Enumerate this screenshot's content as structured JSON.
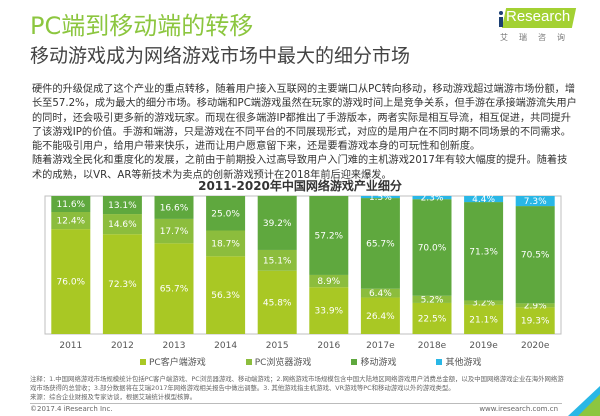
{
  "header": {
    "title": "PC端到移动端的转移",
    "subtitle": "移动游戏成为网络游戏市场中最大的细分市场",
    "logo_text": "Research",
    "logo_cn": "艾瑞咨询"
  },
  "body": {
    "paragraphs": [
      "硬件的升级促成了这个产业的重点转移，随着用户接入互联网的主要端口从PC转向移动，移动游戏超过端游市场份额，增长至57.2%，成为最大的细分市场。移动端和PC端游戏虽然在玩家的游戏时间上是竞争关系，但手游在承接端游流失用户的同时，还会吸引更多新的游戏玩家。而现在很多端游IP都推出了手游版本，两者实际是相互导流，相互促进，共同提升了该游戏IP的价值。手游和端游，只是游戏在不同平台的不同展现形式，对应的是用户在不同时期不同场景的不同需求。能不能吸引用户，给用户带来快乐，进而让用户愿意留下来，还是要看游戏本身的可玩性和创新度。",
      "随着游戏全民化和重度化的发展，之前由于前期投入过高导致用户入门难的主机游戏2017年有较大幅度的提升。随着技术的成熟，以VR、AR等新技术为卖点的创新游戏预计在2018年前后迎来爆发。"
    ]
  },
  "chart_data": {
    "type": "bar",
    "stacked": true,
    "percent": true,
    "title": "2011-2020年中国网络游戏产业细分",
    "xlabel": "",
    "ylabel": "",
    "ylim": [
      0,
      100
    ],
    "grid": false,
    "legend_position": "bottom",
    "categories": [
      "2011",
      "2012",
      "2013",
      "2014",
      "2015",
      "2016",
      "2017e",
      "2018e",
      "2019e",
      "2020e"
    ],
    "series": [
      {
        "name": "PC客户端游戏",
        "color": "#a9c824",
        "values": [
          76.0,
          72.3,
          65.7,
          56.3,
          45.8,
          33.9,
          26.4,
          22.5,
          21.1,
          19.3
        ]
      },
      {
        "name": "PC浏览器游戏",
        "color": "#8cbd3d",
        "values": [
          12.4,
          14.6,
          17.7,
          18.7,
          15.1,
          8.9,
          6.4,
          5.2,
          3.2,
          2.9
        ]
      },
      {
        "name": "移动游戏",
        "color": "#5fa83e",
        "values": [
          11.6,
          13.1,
          16.6,
          25.0,
          39.2,
          57.2,
          65.7,
          70.0,
          71.3,
          70.5
        ]
      },
      {
        "name": "其他游戏",
        "color": "#29b7e6",
        "values": [
          0,
          0,
          0,
          0,
          0,
          0,
          1.5,
          2.3,
          4.4,
          7.3
        ]
      }
    ]
  },
  "notes": [
    "注释：1.中国网络游戏市场规模统计包括PC客户端游戏、PC浏览器游戏、移动端游戏；2.网络游戏市场规模包含中国大陆地区网络游戏用户消费总金额，以及中国网络游戏企业在海外网络游戏市场获得的总营收；3.部分数据将在艾瑞2017年网络游戏相关报告中做出调整。3. 其他游戏指主机游戏、VR游戏等PC和移动游戏以外的游戏类型。",
    "来源：综合企业财报及专家访谈，根据艾瑞统计模型核算。"
  ],
  "footer": {
    "copyright": "©2017.4 iResearch Inc.",
    "website": "www.iresearch.com.cn"
  }
}
